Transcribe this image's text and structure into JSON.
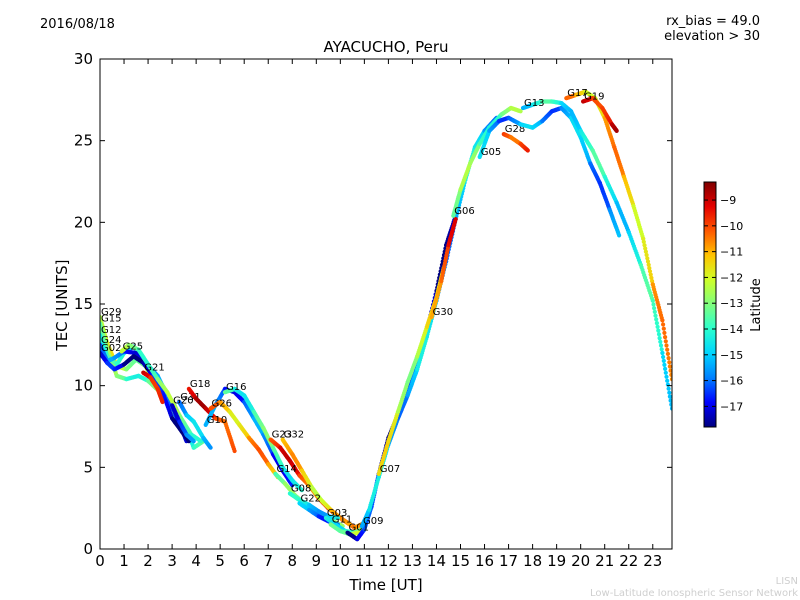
{
  "header": {
    "date": "2016/08/18",
    "rx_bias": "rx_bias = 49.0",
    "elevation": "elevation > 30"
  },
  "footer": {
    "brand": "LISN",
    "network": "Low-Latitude Ionospheric Sensor Network"
  },
  "chart_data": {
    "type": "scatter",
    "title": "AYACUCHO, Peru",
    "xlabel": "Time [UT]",
    "ylabel": "TEC [UNITS]",
    "xlim": [
      0,
      23.8
    ],
    "ylim": [
      0,
      30
    ],
    "xticks": [
      0,
      1,
      2,
      3,
      4,
      5,
      6,
      7,
      8,
      9,
      10,
      11,
      12,
      13,
      14,
      15,
      16,
      17,
      18,
      19,
      20,
      21,
      22,
      23
    ],
    "yticks": [
      0,
      5,
      10,
      15,
      20,
      25,
      30
    ],
    "colorbar": {
      "label": "Latitude",
      "min": -17.8,
      "max": -8.3,
      "ticks": [
        -9,
        -10,
        -11,
        -12,
        -13,
        -14,
        -15,
        -16,
        -17
      ],
      "colors": [
        "#00007f",
        "#0000ff",
        "#007fff",
        "#00d4ff",
        "#29ffce",
        "#7fff7f",
        "#ceff29",
        "#ffc400",
        "#ff5900",
        "#e40000",
        "#7f0000"
      ]
    },
    "series": [
      {
        "name": "G29",
        "lat": -12.5,
        "points": [
          [
            0,
            14.2
          ],
          [
            0.3,
            12.6
          ],
          [
            0.7,
            11.2
          ],
          [
            1.1,
            11.0
          ],
          [
            1.5,
            11.6
          ],
          [
            1.9,
            11.2
          ],
          [
            2.2,
            10.3
          ],
          [
            2.7,
            9.4
          ],
          [
            3.1,
            8.2
          ],
          [
            3.5,
            7.2
          ]
        ]
      },
      {
        "name": "G15",
        "lat": -13.5,
        "points": [
          [
            0,
            13.8
          ],
          [
            0.3,
            12.2
          ],
          [
            0.7,
            10.6
          ],
          [
            1.1,
            10.4
          ],
          [
            1.6,
            10.6
          ],
          [
            2.0,
            10.3
          ],
          [
            2.5,
            9.6
          ],
          [
            3.0,
            8.8
          ],
          [
            3.5,
            7.7
          ],
          [
            3.9,
            6.2
          ],
          [
            4.3,
            6.6
          ]
        ]
      },
      {
        "name": "G12",
        "lat": -14.5,
        "points": [
          [
            0,
            13.1
          ],
          [
            0.3,
            11.8
          ],
          [
            0.7,
            11.3
          ],
          [
            1.0,
            12.0
          ],
          [
            1.4,
            12.4
          ],
          [
            1.7,
            11.8
          ],
          [
            2.2,
            10.9
          ],
          [
            2.6,
            10.0
          ],
          [
            3.1,
            8.8
          ],
          [
            3.5,
            7.5
          ],
          [
            3.9,
            6.8
          ]
        ]
      },
      {
        "name": "G24",
        "lat": -16.3,
        "points": [
          [
            0,
            12.5
          ],
          [
            0.3,
            11.5
          ],
          [
            0.6,
            11.7
          ],
          [
            1.0,
            12.1
          ],
          [
            1.5,
            12.0
          ],
          [
            1.9,
            11.4
          ],
          [
            2.4,
            10.6
          ],
          [
            2.8,
            9.4
          ],
          [
            3.2,
            8.0
          ],
          [
            3.6,
            6.6
          ]
        ]
      },
      {
        "name": "G02",
        "lat": -17.3,
        "points": [
          [
            0,
            12.0
          ],
          [
            0.3,
            11.4
          ],
          [
            0.6,
            11.0
          ],
          [
            1.0,
            11.3
          ],
          [
            1.4,
            11.8
          ],
          [
            1.8,
            11.4
          ],
          [
            2.2,
            10.6
          ],
          [
            2.6,
            9.6
          ],
          [
            3.0,
            8.0
          ],
          [
            3.4,
            7.2
          ],
          [
            3.7,
            6.6
          ]
        ]
      },
      {
        "name": "G25",
        "lat": -13.2,
        "points": [
          [
            0.9,
            12.1
          ],
          [
            1.2,
            12.5
          ],
          [
            1.6,
            12.2
          ],
          [
            2.0,
            11.3
          ],
          [
            2.4,
            10.4
          ],
          [
            2.8,
            9.6
          ],
          [
            3.3,
            8.2
          ],
          [
            3.8,
            7.0
          ],
          [
            4.2,
            6.6
          ]
        ]
      },
      {
        "name": "G21",
        "lat": -9.0,
        "points": [
          [
            1.8,
            10.8
          ],
          [
            2.1,
            10.5
          ],
          [
            2.4,
            9.8
          ],
          [
            2.6,
            9.0
          ]
        ]
      },
      {
        "name": "G31",
        "lat": -15.5,
        "points": [
          [
            3.3,
            9.0
          ],
          [
            3.6,
            8.2
          ],
          [
            3.9,
            7.8
          ],
          [
            4.3,
            6.8
          ],
          [
            4.6,
            6.2
          ]
        ]
      },
      {
        "name": "G20",
        "lat": -16.5,
        "points": [
          [
            3.0,
            8.8
          ],
          [
            3.3,
            7.8
          ],
          [
            3.6,
            7.0
          ],
          [
            3.9,
            6.6
          ]
        ]
      },
      {
        "name": "G18",
        "lat": -9.5,
        "points": [
          [
            3.7,
            9.8
          ],
          [
            4.0,
            9.2
          ],
          [
            4.4,
            8.6
          ],
          [
            4.8,
            8.0
          ],
          [
            5.2,
            7.8
          ],
          [
            5.6,
            6.0
          ]
        ]
      },
      {
        "name": "G10",
        "lat": -16.2,
        "points": [
          [
            4.4,
            7.6
          ],
          [
            4.8,
            8.8
          ],
          [
            5.2,
            9.8
          ],
          [
            5.6,
            9.6
          ],
          [
            6.0,
            9.0
          ],
          [
            6.4,
            8.0
          ],
          [
            6.8,
            7.0
          ],
          [
            7.2,
            5.8
          ],
          [
            7.6,
            4.8
          ],
          [
            8.0,
            3.9
          ]
        ]
      },
      {
        "name": "G26",
        "lat": -11.0,
        "points": [
          [
            4.6,
            8.6
          ],
          [
            5.0,
            9.0
          ],
          [
            5.4,
            8.4
          ],
          [
            5.8,
            7.6
          ],
          [
            6.2,
            6.8
          ],
          [
            6.6,
            6.1
          ],
          [
            7.0,
            5.2
          ],
          [
            7.4,
            4.4
          ]
        ]
      },
      {
        "name": "G16",
        "lat": -13.8,
        "points": [
          [
            5.2,
            9.6
          ],
          [
            5.6,
            9.8
          ],
          [
            6.0,
            9.4
          ],
          [
            6.4,
            8.4
          ],
          [
            6.8,
            7.4
          ],
          [
            7.2,
            6.2
          ],
          [
            7.6,
            5.0
          ],
          [
            8.0,
            4.2
          ],
          [
            8.4,
            3.6
          ]
        ]
      },
      {
        "name": "G23",
        "lat": -9.8,
        "points": [
          [
            7.1,
            6.7
          ],
          [
            7.5,
            6.2
          ],
          [
            7.9,
            5.4
          ],
          [
            8.3,
            4.5
          ],
          [
            8.7,
            3.9
          ],
          [
            9.1,
            3.1
          ],
          [
            9.5,
            2.5
          ],
          [
            9.9,
            2.0
          ],
          [
            10.3,
            1.6
          ],
          [
            10.6,
            1.3
          ],
          [
            11.0,
            1.6
          ]
        ]
      },
      {
        "name": "G32",
        "lat": -11.5,
        "points": [
          [
            7.6,
            6.7
          ],
          [
            8.0,
            5.8
          ],
          [
            8.4,
            4.8
          ],
          [
            8.8,
            3.8
          ],
          [
            9.2,
            3.0
          ],
          [
            9.6,
            2.4
          ],
          [
            10.0,
            1.9
          ],
          [
            10.4,
            1.5
          ]
        ]
      },
      {
        "name": "G14",
        "lat": -13.6,
        "points": [
          [
            7.3,
            4.6
          ],
          [
            7.7,
            4.0
          ],
          [
            8.1,
            3.3
          ],
          [
            8.5,
            2.8
          ],
          [
            8.9,
            2.4
          ],
          [
            9.3,
            2.0
          ],
          [
            9.7,
            1.7
          ],
          [
            10.1,
            1.4
          ]
        ]
      },
      {
        "name": "G08",
        "lat": -14.8,
        "points": [
          [
            7.9,
            3.4
          ],
          [
            8.3,
            3.0
          ],
          [
            8.7,
            2.7
          ],
          [
            9.1,
            2.3
          ],
          [
            9.5,
            2.0
          ],
          [
            9.9,
            1.9
          ]
        ]
      },
      {
        "name": "G22",
        "lat": -15.8,
        "points": [
          [
            8.3,
            2.8
          ],
          [
            8.7,
            2.4
          ],
          [
            9.1,
            2.0
          ],
          [
            9.5,
            1.7
          ],
          [
            9.9,
            1.5
          ]
        ]
      },
      {
        "name": "G03",
        "lat": -14.0,
        "points": [
          [
            9.4,
            1.9
          ],
          [
            9.8,
            1.5
          ],
          [
            10.2,
            1.1
          ],
          [
            10.6,
            1.0
          ],
          [
            11.0,
            1.3
          ]
        ]
      },
      {
        "name": "G11",
        "lat": -12.6,
        "points": [
          [
            9.6,
            1.5
          ],
          [
            10.0,
            1.1
          ],
          [
            10.4,
            0.9
          ],
          [
            10.8,
            1.0
          ]
        ]
      },
      {
        "name": "G01",
        "lat": -17.0,
        "points": [
          [
            10.3,
            1.0
          ],
          [
            10.7,
            0.6
          ],
          [
            11.0,
            1.2
          ],
          [
            11.3,
            2.6
          ],
          [
            11.6,
            4.6
          ],
          [
            12.0,
            6.8
          ],
          [
            12.5,
            8.6
          ],
          [
            13.0,
            10.5
          ],
          [
            13.5,
            12.8
          ],
          [
            14.0,
            15.8
          ],
          [
            14.4,
            18.6
          ],
          [
            14.8,
            20.4
          ]
        ]
      },
      {
        "name": "G09",
        "lat": -15.2,
        "points": [
          [
            10.9,
            1.4
          ],
          [
            11.2,
            2.4
          ],
          [
            11.6,
            4.4
          ],
          [
            12.0,
            6.4
          ],
          [
            12.4,
            8.0
          ],
          [
            12.8,
            9.4
          ],
          [
            13.2,
            11.0
          ],
          [
            13.6,
            13.0
          ],
          [
            14.0,
            15.2
          ],
          [
            14.4,
            17.6
          ],
          [
            14.8,
            20.2
          ],
          [
            15.2,
            22.6
          ],
          [
            15.6,
            24.6
          ],
          [
            16.0,
            25.6
          ],
          [
            16.5,
            26.4
          ]
        ]
      },
      {
        "name": "G07",
        "lat": -12.2,
        "points": [
          [
            11.6,
            4.6
          ],
          [
            12.0,
            6.6
          ],
          [
            12.4,
            8.4
          ],
          [
            12.8,
            10.2
          ],
          [
            13.2,
            11.8
          ],
          [
            13.6,
            13.6
          ],
          [
            14.0,
            15.4
          ],
          [
            14.3,
            17.2
          ]
        ]
      },
      {
        "name": "G30",
        "lat": -10.0,
        "points": [
          [
            13.8,
            14.2
          ],
          [
            14.2,
            16.4
          ],
          [
            14.5,
            18.6
          ],
          [
            14.8,
            20.2
          ]
        ]
      },
      {
        "name": "G06",
        "lat": -13.3,
        "points": [
          [
            14.7,
            20.4
          ],
          [
            15.0,
            22.0
          ],
          [
            15.4,
            23.6
          ],
          [
            15.8,
            24.8
          ],
          [
            16.2,
            25.8
          ],
          [
            16.7,
            26.6
          ],
          [
            17.1,
            27.0
          ],
          [
            17.5,
            26.8
          ]
        ]
      },
      {
        "name": "G28",
        "lat": -9.6,
        "points": [
          [
            16.8,
            25.4
          ],
          [
            17.1,
            25.2
          ],
          [
            17.5,
            24.8
          ],
          [
            17.8,
            24.4
          ]
        ]
      },
      {
        "name": "G05",
        "lat": -15.6,
        "points": [
          [
            15.8,
            24.0
          ],
          [
            16.2,
            25.6
          ],
          [
            16.6,
            26.2
          ],
          [
            17.0,
            26.4
          ],
          [
            17.5,
            26.0
          ],
          [
            18.0,
            25.8
          ],
          [
            18.4,
            26.2
          ],
          [
            18.8,
            26.8
          ],
          [
            19.2,
            27.0
          ],
          [
            19.6,
            26.4
          ],
          [
            20.0,
            25.2
          ],
          [
            20.4,
            23.6
          ],
          [
            20.8,
            22.4
          ],
          [
            21.2,
            20.8
          ],
          [
            21.6,
            19.2
          ]
        ]
      },
      {
        "name": "G13",
        "lat": -14.4,
        "points": [
          [
            17.6,
            27.0
          ],
          [
            18.0,
            27.2
          ],
          [
            18.4,
            27.4
          ],
          [
            18.8,
            27.4
          ],
          [
            19.2,
            27.3
          ],
          [
            19.6,
            26.8
          ],
          [
            20.0,
            25.6
          ],
          [
            20.5,
            24.4
          ],
          [
            21.0,
            22.8
          ],
          [
            21.5,
            21.2
          ],
          [
            22.0,
            19.4
          ],
          [
            22.5,
            17.4
          ],
          [
            23.0,
            15.2
          ],
          [
            23.4,
            12.0
          ],
          [
            23.8,
            8.6
          ]
        ]
      },
      {
        "name": "G17",
        "lat": -11.2,
        "points": [
          [
            19.4,
            27.6
          ],
          [
            19.8,
            27.8
          ],
          [
            20.2,
            28.0
          ],
          [
            20.6,
            27.6
          ],
          [
            21.0,
            26.4
          ],
          [
            21.4,
            24.6
          ],
          [
            21.8,
            22.8
          ],
          [
            22.2,
            21.0
          ],
          [
            22.6,
            19.0
          ],
          [
            23.0,
            16.2
          ],
          [
            23.4,
            14.0
          ],
          [
            23.8,
            10.4
          ]
        ]
      },
      {
        "name": "G19",
        "lat": -9.2,
        "points": [
          [
            20.1,
            27.4
          ],
          [
            20.5,
            27.6
          ],
          [
            20.9,
            27.0
          ],
          [
            21.3,
            26.0
          ],
          [
            21.5,
            25.6
          ]
        ]
      }
    ]
  }
}
